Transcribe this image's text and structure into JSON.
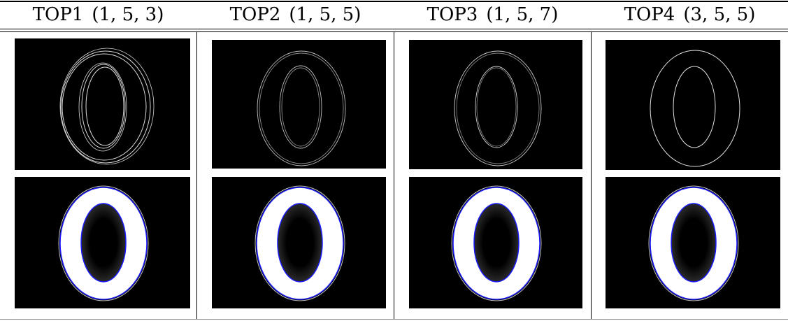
{
  "columns": [
    {
      "label": "TOP1",
      "params": "(1, 5, 3)"
    },
    {
      "label": "TOP2",
      "params": "(1, 5, 5)"
    },
    {
      "label": "TOP3",
      "params": "(1, 5, 7)"
    },
    {
      "label": "TOP4",
      "params": "(3, 5, 5)"
    }
  ],
  "rows": [
    {
      "content": "edge-map",
      "colors": {
        "background": "#000000",
        "edge": "#d8d8d8"
      }
    },
    {
      "content": "distance-map",
      "colors": {
        "background": "#000000",
        "fill": "#ffffff",
        "contour": "#1a1aff"
      }
    }
  ]
}
